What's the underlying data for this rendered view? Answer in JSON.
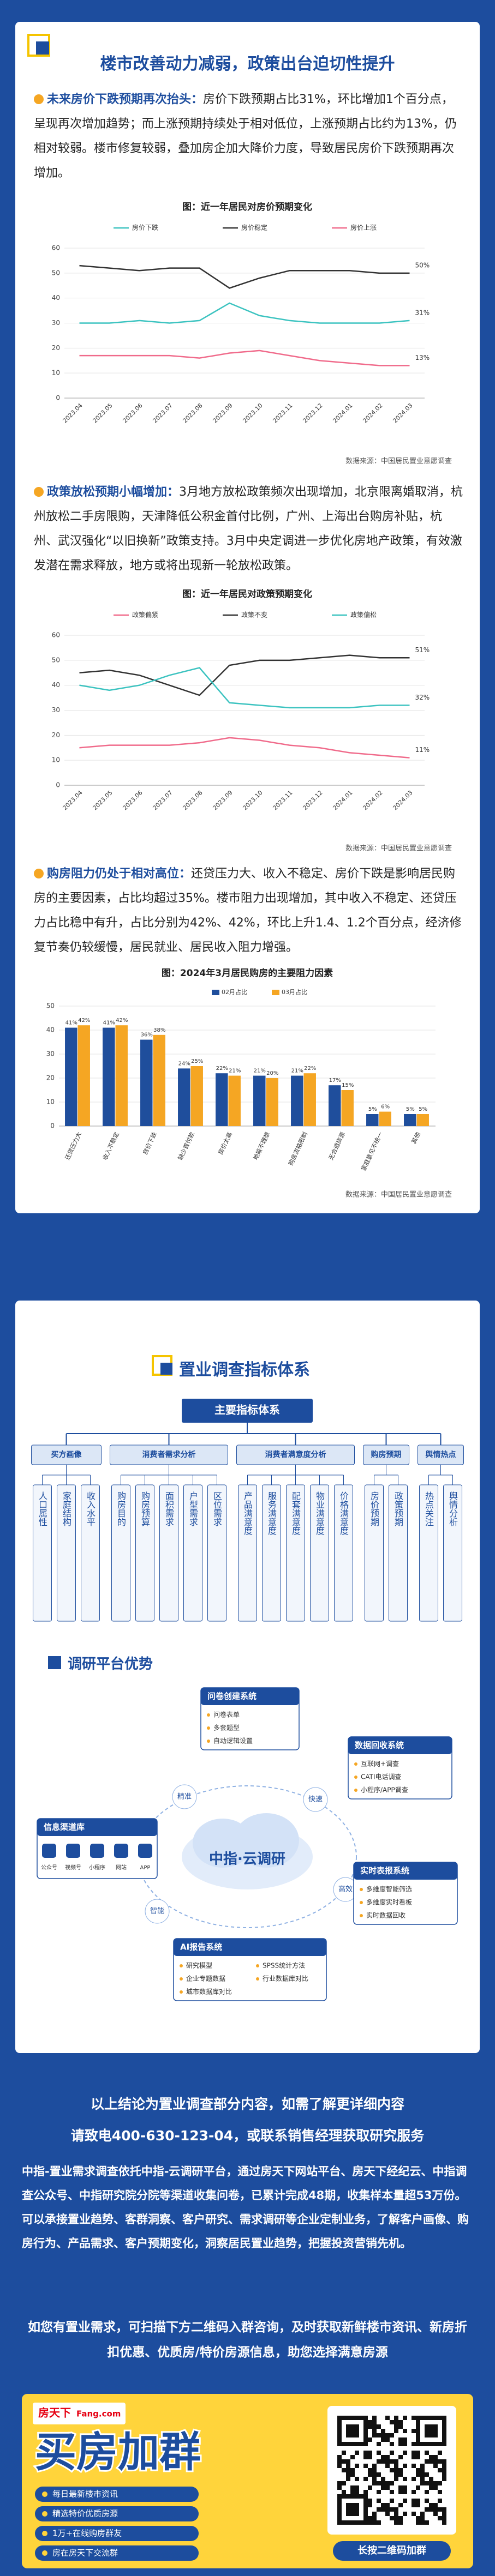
{
  "header": {
    "title": "楼市改善动力减弱，政策出台迫切性提升"
  },
  "sections": [
    {
      "lead": "未来房价下跌预期再次抬头：",
      "text": "房价下跌预期占比31%，环比增加1个百分点，呈现再次增加趋势；而上涨预期持续处于相对低位，上涨预期占比约为13%，仍相对较弱。楼市修复较弱，叠加房企加大降价力度，导致居民房价下跌预期再次增加。"
    },
    {
      "lead": "政策放松预期小幅增加：",
      "text": "3月地方放松政策频次出现增加，北京限离婚取消，杭州放松二手房限购，天津降低公积金首付比例，广州、上海出台购房补贴，杭州、武汉强化“以旧换新”政策支持。3月中央定调进一步优化房地产政策，有效激发潜在需求释放，地方或将出现新一轮放松政策。"
    },
    {
      "lead": "购房阻力仍处于相对高位：",
      "text": "还贷压力大、收入不稳定、房价下跌是影响居民购房的主要因素，占比均超过35%。楼市阻力出现增加，其中收入不稳定、还贷压力占比稳中有升，占比分别为42%、42%，环比上升1.4、1.2个百分点，经济修复节奏仍较缓慢，居民就业、居民收入阻力增强。"
    }
  ],
  "chart_data": [
    {
      "type": "line",
      "title": "图：近一年居民对房价预期变化",
      "source": "数据来源：中国居民置业意愿调查",
      "categories": [
        "2023.04",
        "2023.05",
        "2023.06",
        "2023.07",
        "2023.08",
        "2023.09",
        "2023.10",
        "2023.11",
        "2023.12",
        "2024.01",
        "2024.02",
        "2024.03"
      ],
      "series": [
        {
          "name": "房价下跌",
          "color": "#3cc3c0",
          "values": [
            30,
            30,
            31,
            30,
            31,
            38,
            33,
            31,
            30,
            30,
            30,
            31
          ],
          "value_labels": [
            null,
            null,
            null,
            null,
            null,
            null,
            null,
            null,
            null,
            null,
            null,
            "31%"
          ]
        },
        {
          "name": "房价稳定",
          "color": "#333333",
          "values": [
            53,
            52,
            51,
            52,
            52,
            44,
            48,
            51,
            51,
            51,
            50,
            50
          ],
          "value_labels": [
            null,
            null,
            null,
            null,
            null,
            null,
            null,
            null,
            null,
            null,
            null,
            "50%"
          ]
        },
        {
          "name": "房价上涨",
          "color": "#f06b8b",
          "values": [
            17,
            17,
            17,
            17,
            16,
            18,
            19,
            17,
            15,
            14,
            13,
            13
          ],
          "value_labels": [
            null,
            null,
            null,
            null,
            null,
            null,
            null,
            null,
            null,
            null,
            null,
            "13%"
          ]
        }
      ],
      "ylim": [
        0,
        60
      ],
      "yticks": [
        0,
        10,
        20,
        30,
        40,
        50,
        60
      ],
      "grid": true
    },
    {
      "type": "line",
      "title": "图：近一年居民对政策预期变化",
      "source": "数据来源：中国居民置业意愿调查",
      "categories": [
        "2023.04",
        "2023.05",
        "2023.06",
        "2023.07",
        "2023.08",
        "2023.09",
        "2023.10",
        "2023.11",
        "2023.12",
        "2024.01",
        "2024.02",
        "2024.03"
      ],
      "series": [
        {
          "name": "政策偏紧",
          "color": "#f06b8b",
          "values": [
            15,
            16,
            16,
            16,
            17,
            19,
            18,
            16,
            15,
            13,
            12,
            11
          ],
          "value_labels": [
            null,
            null,
            null,
            null,
            null,
            null,
            null,
            null,
            null,
            null,
            null,
            "11%"
          ]
        },
        {
          "name": "政策不变",
          "color": "#333333",
          "values": [
            45,
            46,
            44,
            40,
            36,
            48,
            50,
            50,
            51,
            52,
            51,
            51
          ],
          "value_labels": [
            null,
            null,
            null,
            null,
            null,
            null,
            null,
            null,
            null,
            null,
            null,
            "51%"
          ]
        },
        {
          "name": "政策偏松",
          "color": "#3cc3c0",
          "values": [
            40,
            38,
            40,
            44,
            47,
            33,
            32,
            31,
            31,
            31,
            32,
            32
          ],
          "value_labels": [
            null,
            null,
            null,
            null,
            null,
            null,
            null,
            null,
            null,
            null,
            null,
            "32%"
          ]
        }
      ],
      "ylim": [
        0,
        60
      ],
      "yticks": [
        0,
        10,
        20,
        30,
        40,
        50,
        60
      ],
      "grid": true
    },
    {
      "type": "bar",
      "title": "图：2024年3月居民购房的主要阻力因素",
      "source": "数据来源：中国居民置业意愿调查",
      "categories": [
        "还贷压力大",
        "收入不稳定",
        "房价下跌",
        "缺少首付款",
        "房价太高",
        "地段不理想",
        "购房资格限制",
        "无合适房源",
        "家庭意见不统一",
        "其他"
      ],
      "series": [
        {
          "name": "02月占比",
          "color": "#1f4e9c",
          "values": [
            41,
            41,
            36,
            24,
            22,
            21,
            21,
            17,
            5,
            5
          ],
          "value_labels": [
            "41%",
            "41%",
            "36%",
            "24%",
            "22%",
            "21%",
            "21%",
            "17%",
            "5%",
            "5%"
          ]
        },
        {
          "name": "03月占比",
          "color": "#f5a623",
          "values": [
            42,
            42,
            38,
            25,
            21,
            20,
            22,
            15,
            6,
            5
          ],
          "value_labels": [
            "42%",
            "42%",
            "38%",
            "25%",
            "21%",
            "20%",
            "22%",
            "15%",
            "6%",
            "5%"
          ]
        }
      ],
      "ylim": [
        0,
        50
      ],
      "yticks": [
        0,
        10,
        20,
        30,
        40,
        50
      ],
      "grid": true
    }
  ],
  "index_system": {
    "title": "置业调查指标体系",
    "root": "主要指标体系",
    "groups": [
      {
        "name": "买方画像",
        "items": [
          "人口属性",
          "家庭结构",
          "收入水平"
        ]
      },
      {
        "name": "消费者需求分析",
        "items": [
          "购房目的",
          "购房预算",
          "面积需求",
          "户型需求",
          "区位需求"
        ]
      },
      {
        "name": "消费者满意度分析",
        "items": [
          "产品满意度",
          "服务满意度",
          "配套满意度",
          "物业满意度",
          "价格满意度"
        ]
      },
      {
        "name": "购房预期",
        "items": [
          "房价预期",
          "政策预期"
        ]
      },
      {
        "name": "舆情热点",
        "items": [
          "热点关注",
          "舆情分析"
        ]
      }
    ]
  },
  "platform": {
    "title": "调研平台优势",
    "center": "中指·云调研",
    "labels": [
      "精准",
      "快速",
      "高效",
      "智能"
    ],
    "nodes": [
      {
        "title": "问卷创建系统",
        "items": [
          "问卷表单",
          "多套题型",
          "自动逻辑设置"
        ]
      },
      {
        "title": "数据回收系统",
        "items": [
          "互联网+调查",
          "CATI电话调查",
          "小程序/APP调查"
        ]
      },
      {
        "title": "信息渠道库",
        "items": [
          "公众号",
          "视频号",
          "小程序",
          "网站",
          "APP"
        ]
      },
      {
        "title": "AI报告系统",
        "items": [
          "研究模型",
          "SPSS统计方法",
          "企业专题数据",
          "行业数据库对比",
          "城市数据库对比"
        ]
      },
      {
        "title": "实时表报系统",
        "items": [
          "多维度智能筛选",
          "多维度实时看板",
          "实时数据回收"
        ]
      }
    ]
  },
  "contact": {
    "lines": [
      "以上结论为置业调查部分内容，如需了解更详细内容",
      "请致电400-630-123-04，或联系销售经理获取研究服务"
    ],
    "body": "中指-置业需求调查依托中指-云调研平台，通过房天下网站平台、房天下经纪云、中指调查公众号、中指研究院分院等渠道收集问卷，已累计完成48期，收集样本量超53万份。可以承接置业趋势、客群洞察、客户研究、需求调研等企业定制业务，了解客户画像、购房行为、产品需求、客户预期变化，洞察居民置业趋势，把握投资营销先机。",
    "invite": "如您有置业需求，可扫描下方二维码入群咨询，及时获取新鲜楼市资讯、新房折扣优惠、优质房/特价房源信息，助您选择满意房源"
  },
  "banner": {
    "brand": "房天下",
    "brand_en": "Fang.com",
    "title": "买房加群",
    "bullets": [
      "每日最新楼市资讯",
      "精选特价优质房源",
      "1万+在线购房群友",
      "房在房天下交流群"
    ],
    "qr_caption": "长按二维码加群"
  }
}
